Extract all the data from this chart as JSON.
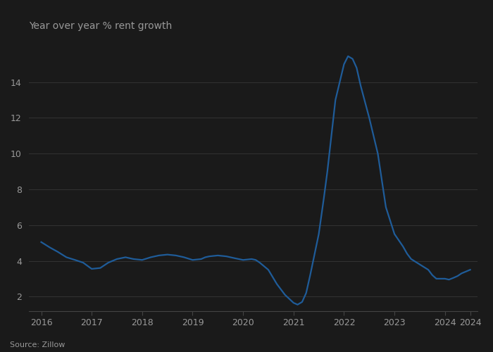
{
  "title": "Year over year % rent growth",
  "source": "Source: Zillow",
  "line_color": "#1f5c99",
  "background_color": "#1a1a1a",
  "text_color": "#999999",
  "grid_color": "#333333",
  "spine_color": "#444444",
  "x_ticks": [
    2016,
    2017,
    2018,
    2019,
    2020,
    2021,
    2022,
    2023,
    2024,
    2024.5
  ],
  "x_tick_labels": [
    "2016",
    "2017",
    "2018",
    "2019",
    "2020",
    "2021",
    "2022",
    "2023",
    "2024",
    "2024"
  ],
  "y_ticks": [
    2,
    4,
    6,
    8,
    10,
    12,
    14
  ],
  "ylim": [
    1.2,
    16.2
  ],
  "xlim": [
    2015.75,
    2024.65
  ],
  "data": [
    [
      2016.0,
      5.05
    ],
    [
      2016.17,
      4.75
    ],
    [
      2016.33,
      4.5
    ],
    [
      2016.5,
      4.2
    ],
    [
      2016.67,
      4.05
    ],
    [
      2016.83,
      3.9
    ],
    [
      2017.0,
      3.55
    ],
    [
      2017.17,
      3.6
    ],
    [
      2017.25,
      3.75
    ],
    [
      2017.33,
      3.9
    ],
    [
      2017.5,
      4.1
    ],
    [
      2017.67,
      4.2
    ],
    [
      2017.83,
      4.1
    ],
    [
      2018.0,
      4.05
    ],
    [
      2018.17,
      4.2
    ],
    [
      2018.33,
      4.3
    ],
    [
      2018.5,
      4.35
    ],
    [
      2018.67,
      4.3
    ],
    [
      2018.83,
      4.2
    ],
    [
      2019.0,
      4.05
    ],
    [
      2019.17,
      4.1
    ],
    [
      2019.25,
      4.2
    ],
    [
      2019.33,
      4.25
    ],
    [
      2019.5,
      4.3
    ],
    [
      2019.67,
      4.25
    ],
    [
      2019.75,
      4.2
    ],
    [
      2019.83,
      4.15
    ],
    [
      2020.0,
      4.05
    ],
    [
      2020.17,
      4.1
    ],
    [
      2020.25,
      4.05
    ],
    [
      2020.33,
      3.9
    ],
    [
      2020.5,
      3.5
    ],
    [
      2020.67,
      2.7
    ],
    [
      2020.83,
      2.1
    ],
    [
      2021.0,
      1.65
    ],
    [
      2021.08,
      1.55
    ],
    [
      2021.17,
      1.7
    ],
    [
      2021.25,
      2.2
    ],
    [
      2021.33,
      3.2
    ],
    [
      2021.5,
      5.5
    ],
    [
      2021.6,
      7.5
    ],
    [
      2021.67,
      9.0
    ],
    [
      2021.75,
      11.0
    ],
    [
      2021.83,
      13.0
    ],
    [
      2022.0,
      15.0
    ],
    [
      2022.08,
      15.45
    ],
    [
      2022.17,
      15.3
    ],
    [
      2022.25,
      14.8
    ],
    [
      2022.33,
      13.8
    ],
    [
      2022.5,
      12.0
    ],
    [
      2022.67,
      10.0
    ],
    [
      2022.75,
      8.5
    ],
    [
      2022.83,
      7.0
    ],
    [
      2023.0,
      5.5
    ],
    [
      2023.17,
      4.8
    ],
    [
      2023.25,
      4.4
    ],
    [
      2023.33,
      4.1
    ],
    [
      2023.5,
      3.8
    ],
    [
      2023.67,
      3.5
    ],
    [
      2023.75,
      3.2
    ],
    [
      2023.83,
      3.0
    ],
    [
      2024.0,
      3.0
    ],
    [
      2024.08,
      2.95
    ],
    [
      2024.17,
      3.05
    ],
    [
      2024.25,
      3.15
    ],
    [
      2024.33,
      3.3
    ],
    [
      2024.5,
      3.5
    ]
  ]
}
